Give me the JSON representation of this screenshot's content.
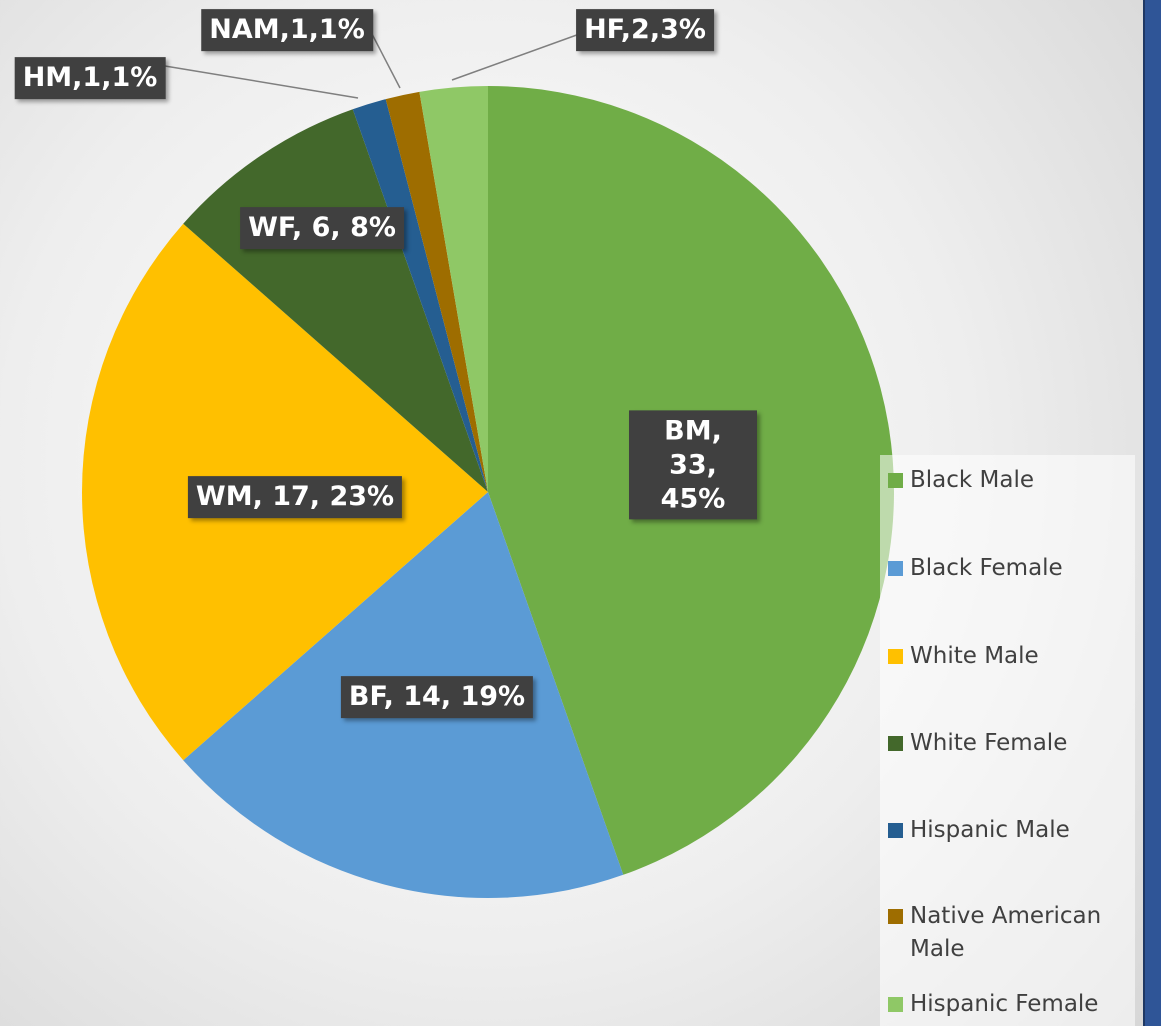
{
  "chart_data": {
    "type": "pie",
    "categories": [
      "Black Male",
      "Black Female",
      "White Male",
      "White Female",
      "Hispanic Male",
      "Native American Male",
      "Hispanic Female"
    ],
    "values": [
      33,
      14,
      17,
      6,
      1,
      1,
      2
    ],
    "value_labels": [
      "BM, 33, 45%",
      "BF, 14, 19%",
      "WM, 17, 23%",
      "WF, 6, 8%",
      "HM,1,1%",
      "NAM,1,1%",
      "HF,2,3%"
    ],
    "colors": [
      "#70ad47",
      "#5b9bd5",
      "#ffc000",
      "#43682b",
      "#255e91",
      "#9e6d00",
      "#8fc866"
    ],
    "legend": "right"
  }
}
